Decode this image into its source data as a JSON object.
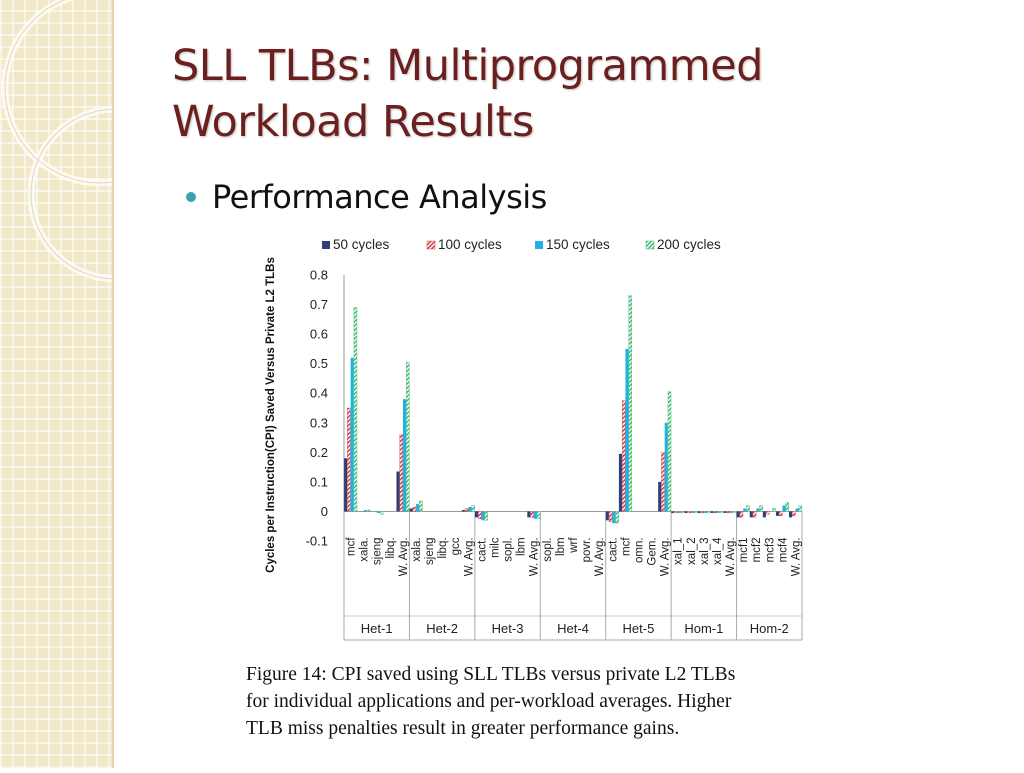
{
  "slide": {
    "title_line1": "SLL TLBs: Multiprogrammed",
    "title_line2": "Workload Results",
    "bullet": "Performance Analysis",
    "caption_line1": "Figure 14:  CPI saved using SLL TLBs versus private L2 TLBs",
    "caption_line2": "for individual applications and per-workload averages.  Higher",
    "caption_line3": "TLB miss penalties result in greater performance gains.",
    "colors": {
      "title": "#6b1f1f",
      "bullet": "#3ba1b3",
      "sidebar": "#f1e8c7"
    }
  },
  "chart_data": {
    "type": "bar",
    "ylabel": "Cycles per Instruction(CPI) Saved Versus Private L2 TLBs",
    "ylim": [
      -0.1,
      0.8
    ],
    "yticks": [
      "0.8",
      "0.7",
      "0.6",
      "0.5",
      "0.4",
      "0.3",
      "0.2",
      "0.1",
      "0",
      "-0.1"
    ],
    "legend_position": "top",
    "series": [
      {
        "name": "50 cycles",
        "color": "#2f3f78",
        "pattern": "solid"
      },
      {
        "name": "100 cycles",
        "color": "#d0454d",
        "pattern": "hatch"
      },
      {
        "name": "150 cycles",
        "color": "#21b1e4",
        "pattern": "solid"
      },
      {
        "name": "200 cycles",
        "color": "#48ba78",
        "pattern": "hatch"
      }
    ],
    "groups": [
      {
        "name": "Het-1",
        "categories": [
          "mcf",
          "xala.",
          "sjeng",
          "libq.",
          "W. Avg."
        ],
        "values": [
          [
            0.18,
            0.35,
            0.52,
            0.69
          ],
          [
            0.0,
            0.0,
            0.005,
            0.005
          ],
          [
            0.0,
            0.0,
            -0.005,
            -0.01
          ],
          [
            0.0,
            0.0,
            0.0,
            0.0
          ],
          [
            0.135,
            0.26,
            0.38,
            0.505
          ]
        ]
      },
      {
        "name": "Het-2",
        "categories": [
          "xala.",
          "sjeng",
          "libq.",
          "gcc",
          "W. Avg."
        ],
        "values": [
          [
            0.01,
            0.015,
            0.025,
            0.035
          ],
          [
            0.0,
            0.0,
            0.0,
            0.0
          ],
          [
            0.0,
            0.0,
            0.0,
            0.0
          ],
          [
            0.0,
            0.0,
            0.0,
            0.0
          ],
          [
            0.005,
            0.01,
            0.015,
            0.02
          ]
        ]
      },
      {
        "name": "Het-3",
        "categories": [
          "cact.",
          "milc",
          "sopl.",
          "lbm",
          "W. Avg."
        ],
        "values": [
          [
            -0.02,
            -0.025,
            -0.03,
            -0.03
          ],
          [
            0.0,
            0.0,
            0.0,
            0.0
          ],
          [
            0.0,
            0.0,
            0.0,
            0.0
          ],
          [
            0.0,
            0.0,
            0.0,
            0.0
          ],
          [
            -0.02,
            -0.02,
            -0.025,
            -0.025
          ]
        ]
      },
      {
        "name": "Het-4",
        "categories": [
          "sopl.",
          "lbm",
          "wrf",
          "povr.",
          "W. Avg."
        ],
        "values": [
          [
            0.0,
            0.0,
            0.0,
            0.0
          ],
          [
            0.0,
            0.0,
            0.0,
            0.0
          ],
          [
            0.0,
            0.0,
            0.0,
            0.0
          ],
          [
            0.0,
            0.0,
            0.0,
            0.0
          ],
          [
            0.0,
            0.0,
            0.0,
            0.0
          ]
        ]
      },
      {
        "name": "Het-5",
        "categories": [
          "cact.",
          "mcf",
          "omn.",
          "Gem.",
          "W. Avg."
        ],
        "values": [
          [
            -0.03,
            -0.035,
            -0.04,
            -0.04
          ],
          [
            0.195,
            0.375,
            0.55,
            0.73
          ],
          [
            0.0,
            0.0,
            0.0,
            0.0
          ],
          [
            0.0,
            0.0,
            0.0,
            0.0
          ],
          [
            0.1,
            0.2,
            0.3,
            0.405
          ]
        ]
      },
      {
        "name": "Hom-1",
        "categories": [
          "xal_1",
          "xal_2",
          "xal_3",
          "xal_4",
          "W. Avg."
        ],
        "values": [
          [
            -0.005,
            -0.005,
            -0.005,
            -0.005
          ],
          [
            -0.005,
            -0.005,
            -0.005,
            -0.005
          ],
          [
            -0.005,
            -0.005,
            -0.005,
            -0.005
          ],
          [
            -0.005,
            -0.005,
            -0.005,
            -0.005
          ],
          [
            -0.005,
            -0.005,
            -0.005,
            -0.005
          ]
        ]
      },
      {
        "name": "Hom-2",
        "categories": [
          "mcf1",
          "mcf2",
          "mcf3",
          "mcf4",
          "W. Avg."
        ],
        "values": [
          [
            -0.02,
            -0.02,
            0.01,
            0.02
          ],
          [
            -0.02,
            -0.02,
            0.01,
            0.02
          ],
          [
            -0.02,
            -0.01,
            0.0,
            0.01
          ],
          [
            -0.015,
            -0.015,
            0.02,
            0.03
          ],
          [
            -0.02,
            -0.015,
            0.01,
            0.02
          ]
        ]
      }
    ]
  }
}
